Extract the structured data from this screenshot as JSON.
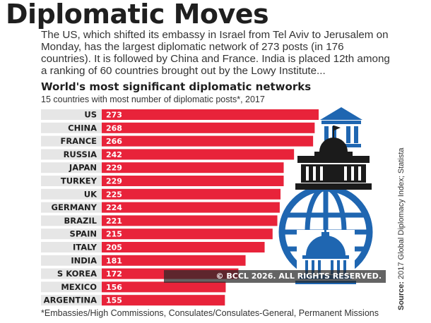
{
  "title": "Diplomatic Moves",
  "intro": "The US, which shifted its embassy in Israel from Tel Aviv to Jerusalem on Monday, has the largest diplomatic network of 273 posts (in 176 countries). It is followed by China and France. India is placed 12th among a ranking of 60 countries brought out by the Lowy Institute...",
  "colors": {
    "bar": "#e8233a",
    "row_band": "#e6e6e6",
    "icon_dark": "#1b1b1b",
    "icon_blue": "#1f66b1"
  },
  "icons": [
    "bank-icon",
    "government-building-icon",
    "globe-icon",
    "capitol-dome-icon"
  ],
  "chart_data": {
    "type": "bar",
    "orientation": "horizontal",
    "title": "World's most significant diplomatic networks",
    "subtitle": "15 countries with most number of diplomatic posts*, 2017",
    "categories": [
      "US",
      "CHINA",
      "FRANCE",
      "RUSSIA",
      "JAPAN",
      "TURKEY",
      "UK",
      "GERMANY",
      "BRAZIL",
      "SPAIN",
      "ITALY",
      "INDIA",
      "S KOREA",
      "MEXICO",
      "ARGENTINA"
    ],
    "values": [
      273,
      268,
      266,
      242,
      229,
      229,
      225,
      224,
      221,
      215,
      205,
      181,
      172,
      156,
      155
    ],
    "data_labels": [
      "273",
      "268",
      "266",
      "242",
      "229",
      "229",
      "225",
      "224",
      "221",
      "215",
      "205",
      "181",
      "172",
      "156",
      "155"
    ],
    "xlim": [
      0,
      273
    ],
    "grid": false,
    "legend": "none"
  },
  "footnote": "*Embassies/High Commissions, Consulates/Consulates-General, Permanent Missions",
  "source": {
    "label": "Source:",
    "text": "2017 Global Diplomacy Index; Statista"
  },
  "watermark": "© BCCL 2026. ALL RIGHTS RESERVED."
}
